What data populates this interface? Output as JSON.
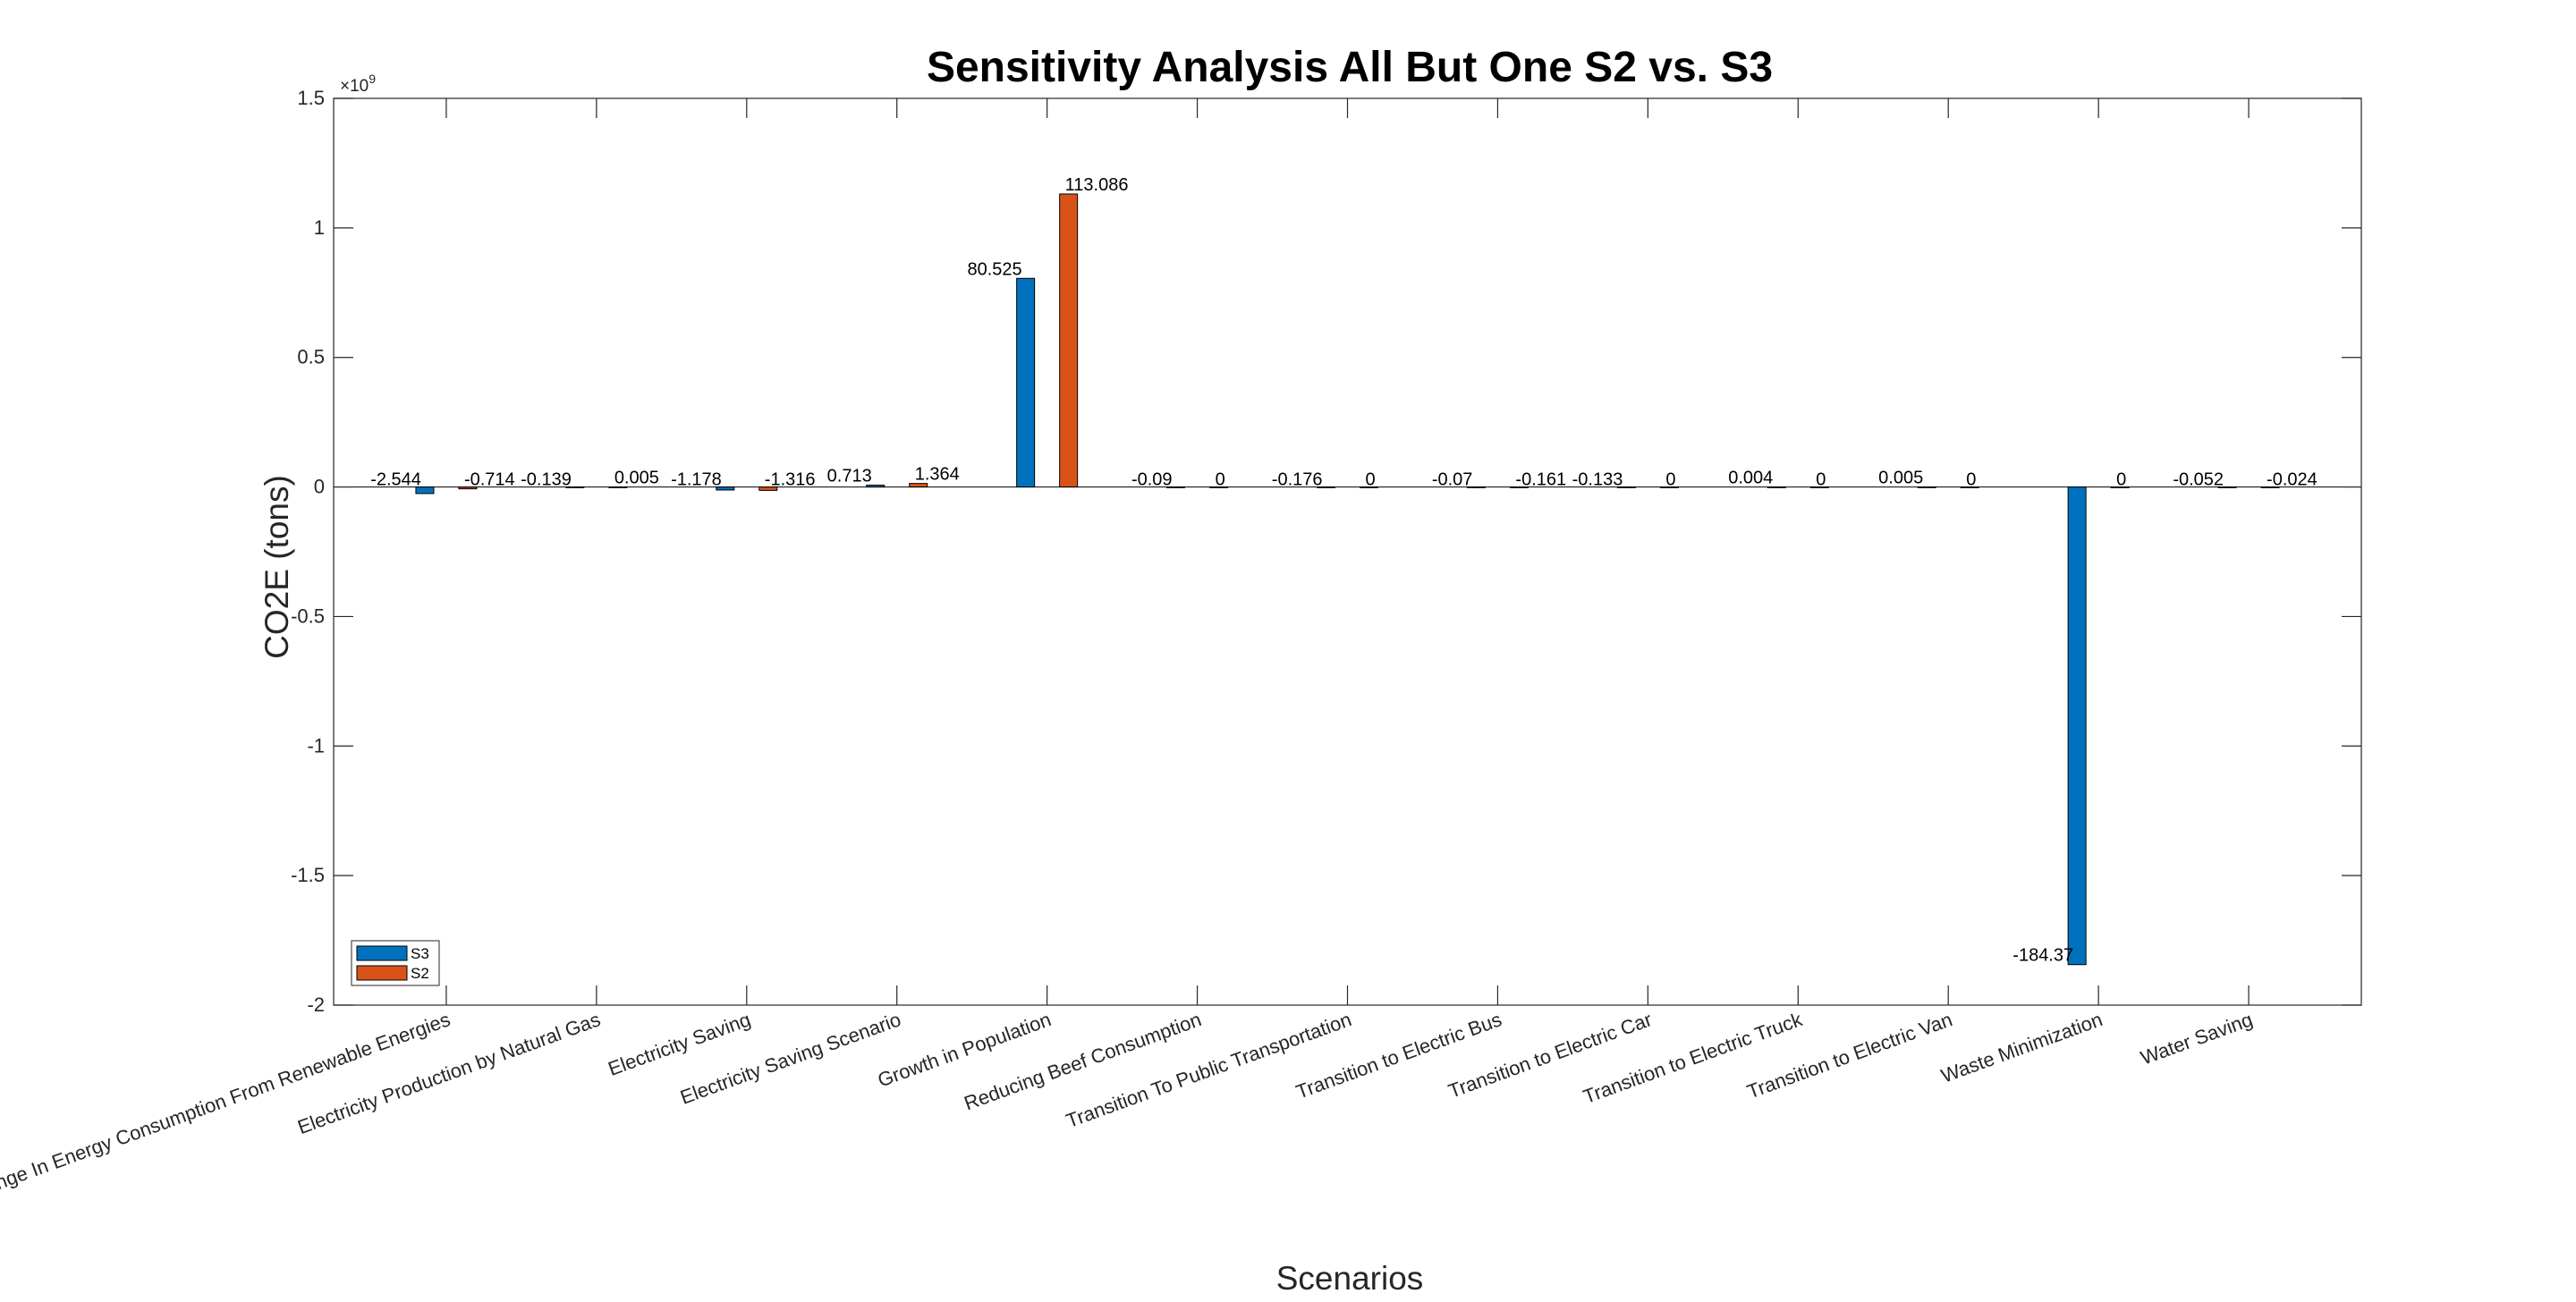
{
  "chart_data": {
    "type": "bar",
    "title": "Sensitivity Analysis All But One S2 vs. S3",
    "xlabel": "Scenarios",
    "ylabel": "CO2E (tons)",
    "y_exponent_label": "×10",
    "y_exponent_power": "9",
    "ylim": [
      -2,
      1.5
    ],
    "y_scale": 1000000000,
    "yticks": [
      -2,
      -1.5,
      -1,
      -0.5,
      0,
      0.5,
      1,
      1.5
    ],
    "ytick_labels": [
      "-2",
      "-1.5",
      "-1",
      "-0.5",
      "0",
      "0.5",
      "1",
      "1.5"
    ],
    "grid": false,
    "legend_position": "bottom-left",
    "categories": [
      "Change In Energy Consumption From Renewable Energies",
      "Electricity Production by Natural Gas",
      "Electricity Saving",
      "Electricity Saving Scenario",
      "Growth in Population",
      "Reducing Beef Consumption",
      "Transition To Public Transportation",
      "Transition to Electric Bus",
      "Transition to Electric Car",
      "Transition to Electric Truck",
      "Transition to Electric Van",
      "Waste Minimization",
      "Water Saving"
    ],
    "series": [
      {
        "name": "S3",
        "color": "#0072BD",
        "values": [
          -0.02544,
          -0.00139,
          -0.01178,
          0.00713,
          0.80525,
          -0.0009,
          -0.00176,
          -0.0007,
          -0.00133,
          4e-05,
          5e-05,
          -1.8437,
          -0.00052
        ],
        "labels": [
          "-2.544",
          "-0.139",
          "-1.178",
          "0.713",
          "80.525",
          "-0.09",
          "-0.176",
          "-0.07",
          "-0.133",
          "0.004",
          "0.005",
          "-184.37",
          "-0.052"
        ]
      },
      {
        "name": "S2",
        "color": "#D95319",
        "values": [
          -0.00714,
          5e-05,
          -0.01316,
          0.01364,
          1.13086,
          0,
          0,
          -0.00161,
          0,
          0,
          0,
          0,
          -0.00024
        ],
        "labels": [
          "-0.714",
          "0.005",
          "-1.316",
          "1.364",
          "113.086",
          "0",
          "0",
          "-0.161",
          "0",
          "0",
          "0",
          "0",
          "-0.024"
        ]
      }
    ]
  }
}
